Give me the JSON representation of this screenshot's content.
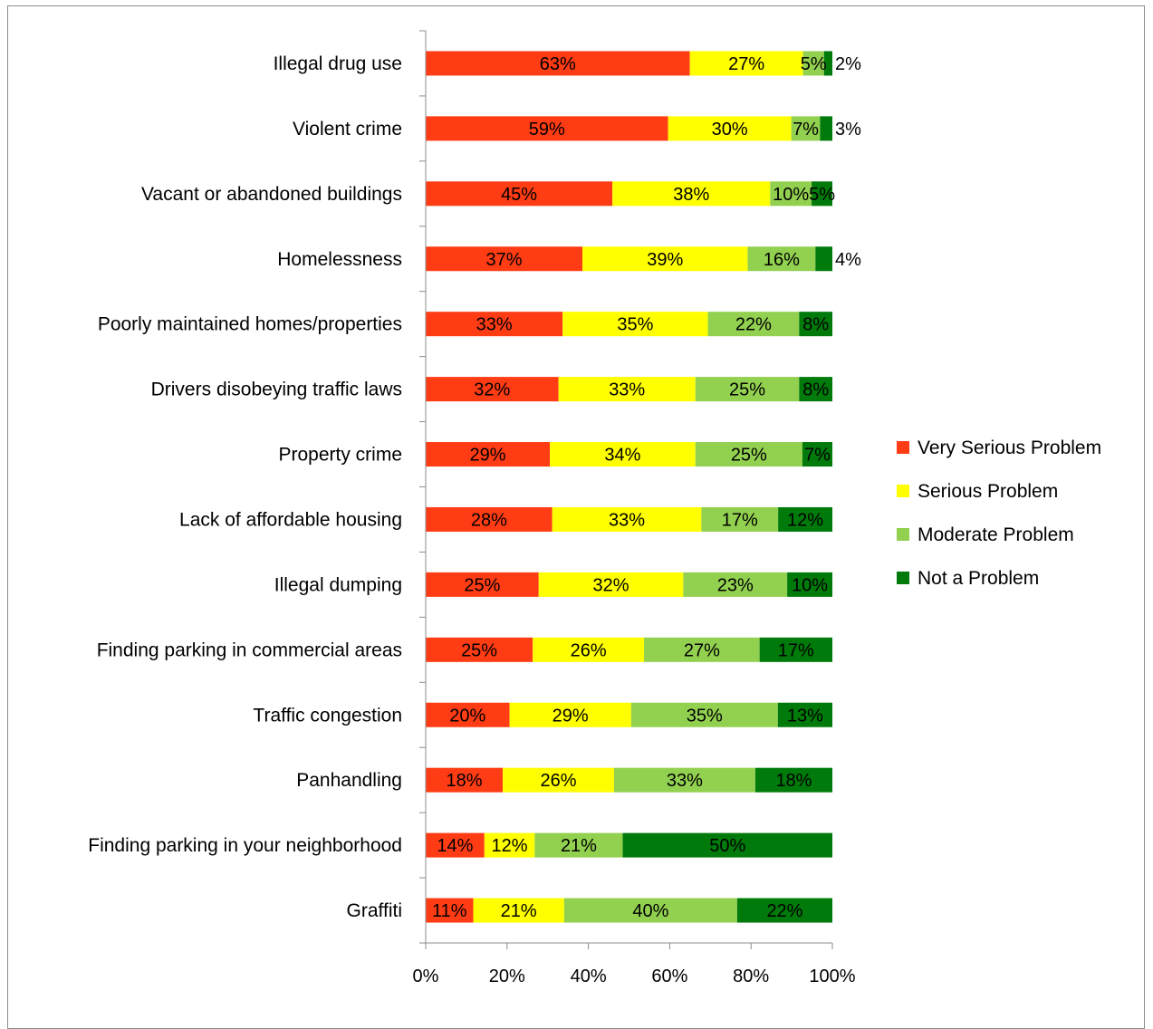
{
  "colors": {
    "Very Serious Problem": "#ff3c14",
    "Serious Problem": "#ffff00",
    "Moderate Problem": "#92d050",
    "Not a Problem": "#007a0a",
    "axis": "#8c8c8c",
    "frame": "#8c8c8c"
  },
  "chart_data": {
    "type": "bar",
    "orientation": "horizontal",
    "stacked": "percent",
    "title": "",
    "xlabel": "",
    "ylabel": "",
    "xlim": [
      0,
      100
    ],
    "x_ticks": [
      "0%",
      "20%",
      "40%",
      "60%",
      "80%",
      "100%"
    ],
    "grid": false,
    "legend_position": "right",
    "categories": [
      "Illegal drug use",
      "Violent crime",
      "Vacant or abandoned buildings",
      "Homelessness",
      "Poorly maintained homes/properties",
      "Drivers disobeying traffic laws",
      "Property crime",
      "Lack of affordable housing",
      "Illegal dumping",
      "Finding parking in commercial areas",
      "Traffic congestion",
      "Panhandling",
      "Finding parking in your neighborhood",
      "Graffiti"
    ],
    "series": [
      {
        "name": "Very Serious Problem",
        "values": [
          63,
          59,
          45,
          37,
          33,
          32,
          29,
          28,
          25,
          25,
          20,
          18,
          14,
          11
        ]
      },
      {
        "name": "Serious Problem",
        "values": [
          27,
          30,
          38,
          39,
          35,
          33,
          34,
          33,
          32,
          26,
          29,
          26,
          12,
          21
        ]
      },
      {
        "name": "Moderate Problem",
        "values": [
          5,
          7,
          10,
          16,
          22,
          25,
          25,
          17,
          23,
          27,
          35,
          33,
          21,
          40
        ]
      },
      {
        "name": "Not a Problem",
        "values": [
          2,
          3,
          5,
          4,
          8,
          8,
          7,
          12,
          10,
          17,
          13,
          18,
          50,
          22
        ]
      }
    ],
    "data_labels": [
      [
        "63%",
        "27%",
        "5%",
        "2%"
      ],
      [
        "59%",
        "30%",
        "7%",
        "3%"
      ],
      [
        "45%",
        "38%",
        "10%",
        "5%"
      ],
      [
        "37%",
        "39%",
        "16%",
        "4%"
      ],
      [
        "33%",
        "35%",
        "22%",
        "8%"
      ],
      [
        "32%",
        "33%",
        "25%",
        "8%"
      ],
      [
        "29%",
        "34%",
        "25%",
        "7%"
      ],
      [
        "28%",
        "33%",
        "17%",
        "12%"
      ],
      [
        "25%",
        "32%",
        "23%",
        "10%"
      ],
      [
        "25%",
        "26%",
        "27%",
        "17%"
      ],
      [
        "20%",
        "29%",
        "35%",
        "13%"
      ],
      [
        "18%",
        "26%",
        "33%",
        "18%"
      ],
      [
        "14%",
        "12%",
        "21%",
        "50%"
      ],
      [
        "11%",
        "21%",
        "40%",
        "22%"
      ]
    ]
  }
}
